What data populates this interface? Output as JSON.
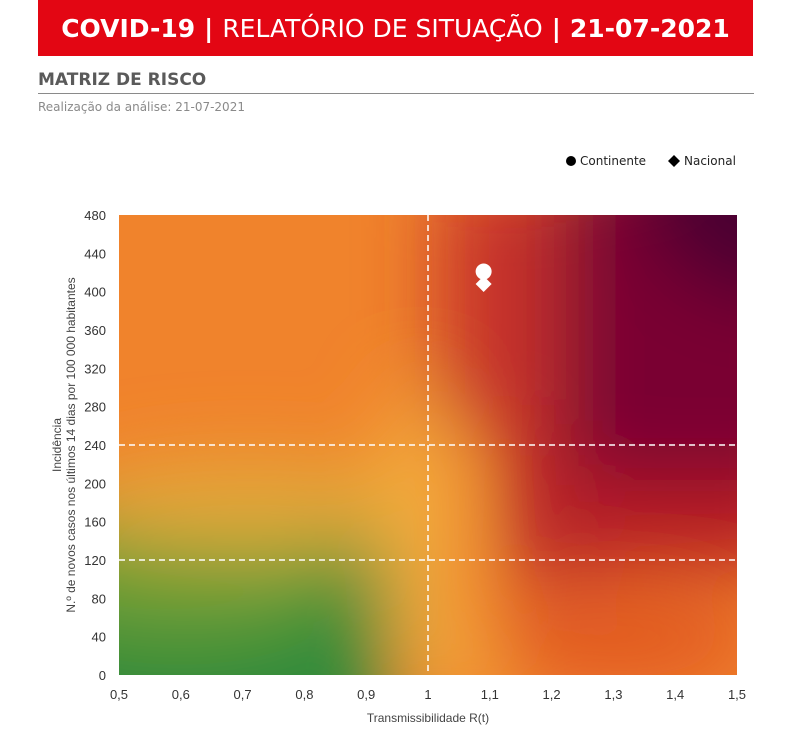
{
  "header": {
    "title_bold": "COVID-19",
    "separator": "|",
    "title_middle": "RELATÓRIO DE SITUAÇÃO",
    "date": "21-07-2021"
  },
  "section": {
    "title": "MATRIZ DE RISCO",
    "subtitle": "Realização da análise: 21-07-2021"
  },
  "chart_data": {
    "type": "scatter",
    "title": "",
    "xlabel": "Transmissibilidade R(t)",
    "ylabel_line1": "Incidência",
    "ylabel_line2": "N.º de novos casos nos últimos 14 dias por 100 000 habitantes",
    "xlim": [
      0.5,
      1.5
    ],
    "ylim": [
      0,
      480
    ],
    "x_ticks": [
      "0,5",
      "0,6",
      "0,7",
      "0,8",
      "0,9",
      "1",
      "1,1",
      "1,2",
      "1,3",
      "1,4",
      "1,5"
    ],
    "y_ticks": [
      "0",
      "40",
      "80",
      "120",
      "160",
      "200",
      "240",
      "280",
      "320",
      "360",
      "400",
      "440",
      "480"
    ],
    "thresholds": {
      "x": 1,
      "y": [
        120,
        240
      ]
    },
    "legend_position": "top-right",
    "series": [
      {
        "name": "Continente",
        "marker": "circle",
        "x": 1.09,
        "y": 421,
        "color": "#ffffff"
      },
      {
        "name": "Nacional",
        "marker": "diamond",
        "x": 1.09,
        "y": 408,
        "color": "#ffffff"
      }
    ],
    "background_colors": {
      "low": "#2e8b3a",
      "mid": "#f2a93b",
      "orange": "#f57a2a",
      "red": "#c22a1f",
      "dark": "#5a0030"
    }
  }
}
